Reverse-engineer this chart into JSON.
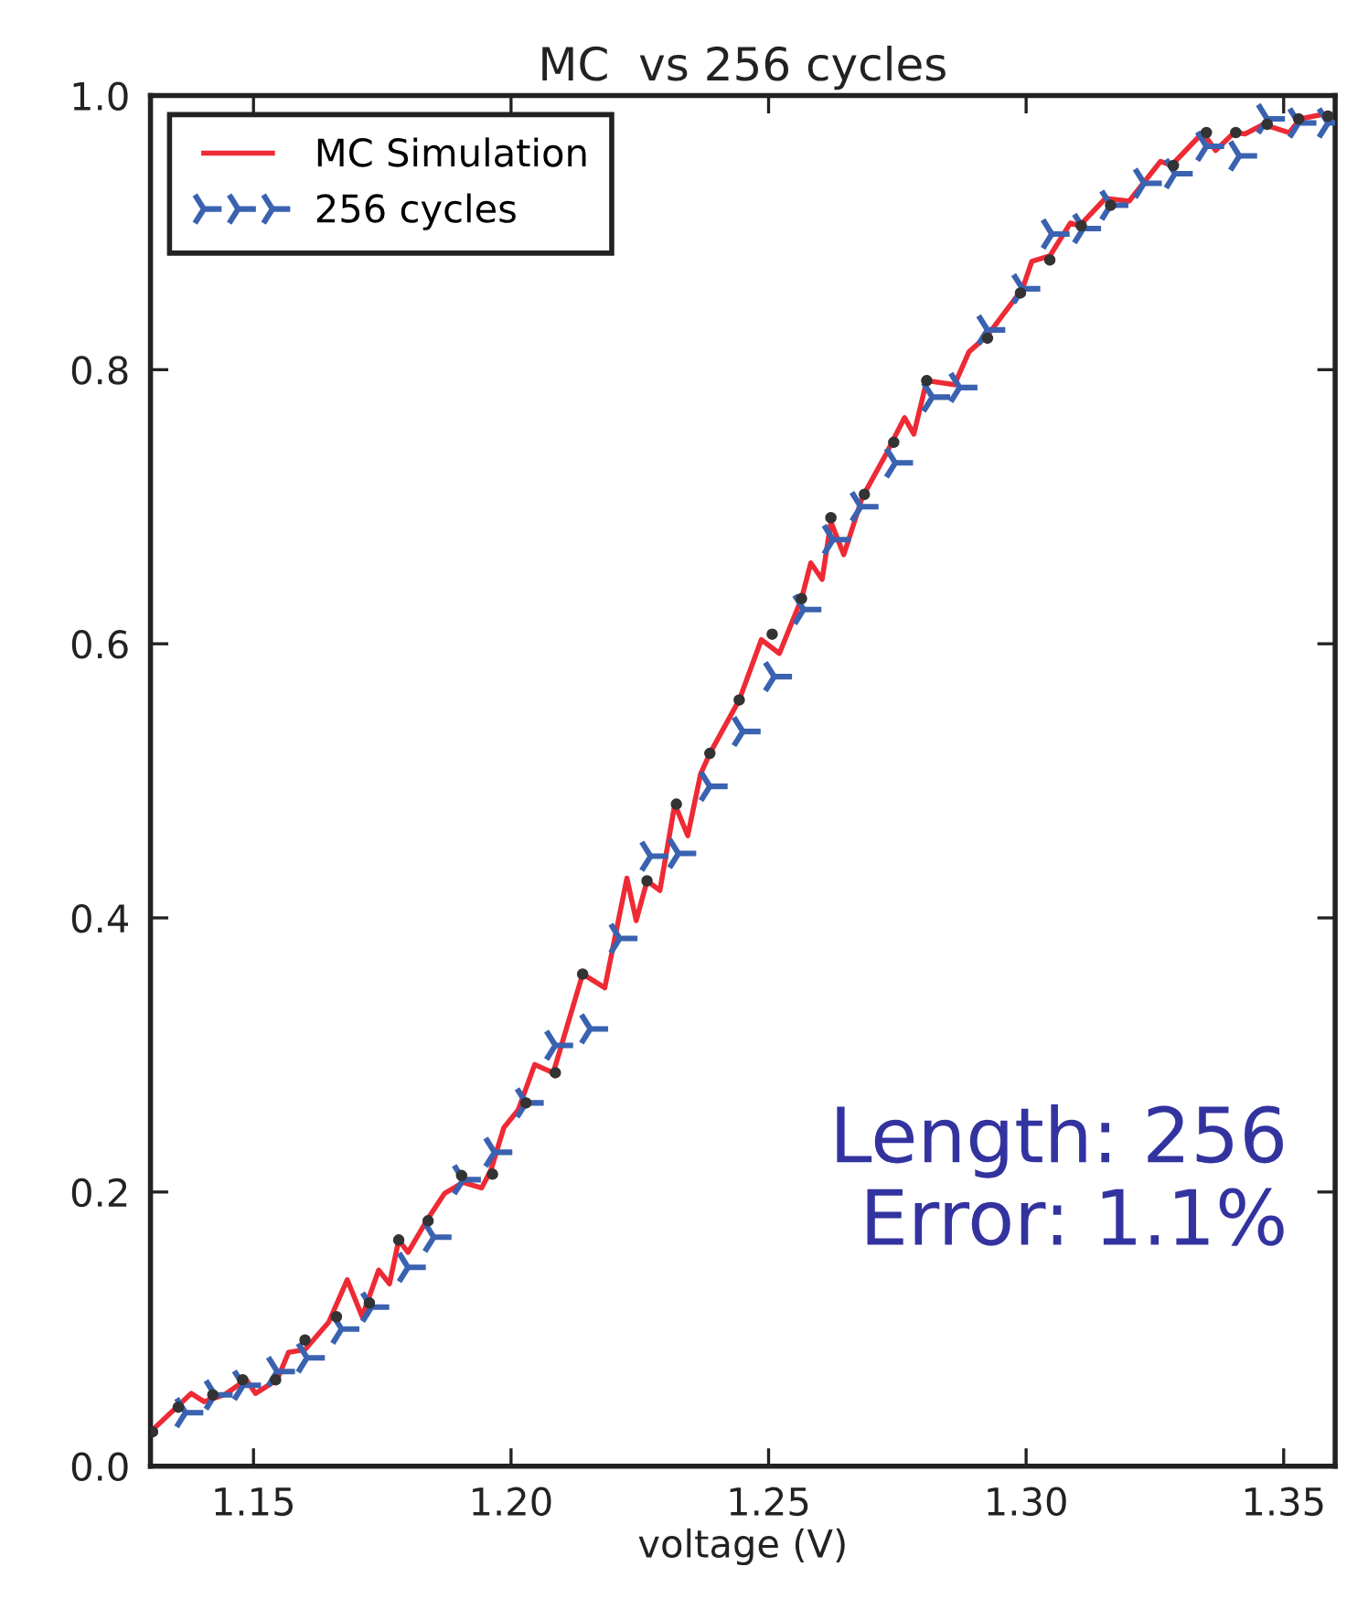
{
  "chart_data": {
    "type": "line",
    "title": "MC  vs 256 cycles",
    "xlabel": "voltage (V)",
    "xlim": [
      1.13,
      1.36
    ],
    "xticks": [
      {
        "value": 1.15,
        "label": "1.15"
      },
      {
        "value": 1.2,
        "label": "1.20"
      },
      {
        "value": 1.25,
        "label": "1.25"
      },
      {
        "value": 1.3,
        "label": "1.30"
      },
      {
        "value": 1.35,
        "label": "1.35"
      }
    ],
    "ylim": [
      0,
      1
    ],
    "yticks": [
      {
        "value": 0,
        "label": "0.0"
      },
      {
        "value": 0.2,
        "label": "0.2"
      },
      {
        "value": 0.4,
        "label": "0.4"
      },
      {
        "value": 0.6,
        "label": "0.6"
      },
      {
        "value": 0.8,
        "label": "0.8"
      },
      {
        "value": 1,
        "label": "1.0"
      }
    ],
    "grid": false,
    "legend": "top left",
    "annotations": [
      "Length: 256",
      "Error: 1.1%"
    ],
    "series": [
      {
        "name": "MC Simulation",
        "color": "#ee2a35",
        "line_style": "solid",
        "marker": "none",
        "x": [
          1.13,
          1.1379,
          1.1404,
          1.1443,
          1.1486,
          1.1504,
          1.1546,
          1.1568,
          1.16,
          1.1646,
          1.1682,
          1.1711,
          1.1743,
          1.1764,
          1.1782,
          1.18,
          1.1836,
          1.1871,
          1.1907,
          1.1943,
          1.1961,
          1.1986,
          1.2014,
          1.2046,
          1.2082,
          1.2139,
          1.2182,
          1.2225,
          1.2243,
          1.2264,
          1.2289,
          1.2318,
          1.2343,
          1.2368,
          1.2386,
          1.2443,
          1.2486,
          1.2521,
          1.2564,
          1.2582,
          1.2604,
          1.2621,
          1.2646,
          1.2682,
          1.2729,
          1.2764,
          1.2782,
          1.2807,
          1.2861,
          1.2889,
          1.2925,
          1.2993,
          1.3011,
          1.3046,
          1.3086,
          1.3104,
          1.3154,
          1.32,
          1.3261,
          1.3282,
          1.3343,
          1.3368,
          1.3404,
          1.3425,
          1.3461,
          1.3511,
          1.3532,
          1.3586,
          1.36
        ],
        "values": [
          0.025,
          0.053,
          0.047,
          0.052,
          0.063,
          0.053,
          0.063,
          0.083,
          0.085,
          0.105,
          0.136,
          0.109,
          0.143,
          0.133,
          0.165,
          0.156,
          0.179,
          0.199,
          0.207,
          0.203,
          0.216,
          0.247,
          0.26,
          0.293,
          0.287,
          0.359,
          0.349,
          0.429,
          0.398,
          0.427,
          0.42,
          0.483,
          0.46,
          0.505,
          0.52,
          0.559,
          0.603,
          0.593,
          0.633,
          0.659,
          0.647,
          0.689,
          0.665,
          0.707,
          0.739,
          0.765,
          0.753,
          0.792,
          0.789,
          0.813,
          0.825,
          0.859,
          0.879,
          0.883,
          0.907,
          0.905,
          0.925,
          0.923,
          0.952,
          0.949,
          0.973,
          0.96,
          0.973,
          0.972,
          0.979,
          0.973,
          0.983,
          0.987,
          0.985
        ]
      },
      {
        "name": "256 cycles",
        "type": "scatter",
        "color": "#3a62b0",
        "marker": "cross",
        "x": [
          1.1368,
          1.1425,
          1.148,
          1.1546,
          1.1604,
          1.1671,
          1.1729,
          1.18,
          1.185,
          1.1907,
          1.1968,
          1.2029,
          1.2086,
          1.2154,
          1.2211,
          1.2271,
          1.2325,
          1.2386,
          1.245,
          1.2511,
          1.2568,
          1.2625,
          1.2679,
          1.2746,
          1.2818,
          1.2871,
          1.2925,
          1.2993,
          1.305,
          1.3111,
          1.3164,
          1.3229,
          1.3289,
          1.335,
          1.3414,
          1.3468,
          1.3529,
          1.3586
        ],
        "values": [
          0.039,
          0.052,
          0.059,
          0.069,
          0.079,
          0.1,
          0.116,
          0.145,
          0.167,
          0.209,
          0.229,
          0.265,
          0.307,
          0.319,
          0.385,
          0.445,
          0.447,
          0.496,
          0.536,
          0.576,
          0.625,
          0.676,
          0.7,
          0.732,
          0.78,
          0.787,
          0.829,
          0.859,
          0.899,
          0.903,
          0.92,
          0.936,
          0.943,
          0.963,
          0.956,
          0.983,
          0.98,
          0.98
        ]
      },
      {
        "type": "scatter",
        "color": "#333333",
        "marker": "circle",
        "x": [
          1.1304,
          1.1354,
          1.1421,
          1.1479,
          1.1543,
          1.16,
          1.1661,
          1.1725,
          1.1782,
          1.1839,
          1.1904,
          1.1964,
          1.2029,
          1.2086,
          1.2139,
          1.2264,
          1.2321,
          1.2386,
          1.2443,
          1.2507,
          1.2564,
          1.2621,
          1.2686,
          1.2743,
          1.2807,
          1.2925,
          1.2989,
          1.3046,
          1.3107,
          1.3164,
          1.3286,
          1.335,
          1.3407,
          1.3468,
          1.3529,
          1.3586
        ],
        "values": [
          0.025,
          0.043,
          0.052,
          0.063,
          0.063,
          0.092,
          0.109,
          0.119,
          0.165,
          0.179,
          0.212,
          0.213,
          0.265,
          0.287,
          0.359,
          0.427,
          0.483,
          0.52,
          0.559,
          0.607,
          0.633,
          0.692,
          0.709,
          0.747,
          0.792,
          0.823,
          0.856,
          0.88,
          0.905,
          0.92,
          0.949,
          0.973,
          0.973,
          0.979,
          0.983,
          0.985
        ]
      }
    ]
  }
}
